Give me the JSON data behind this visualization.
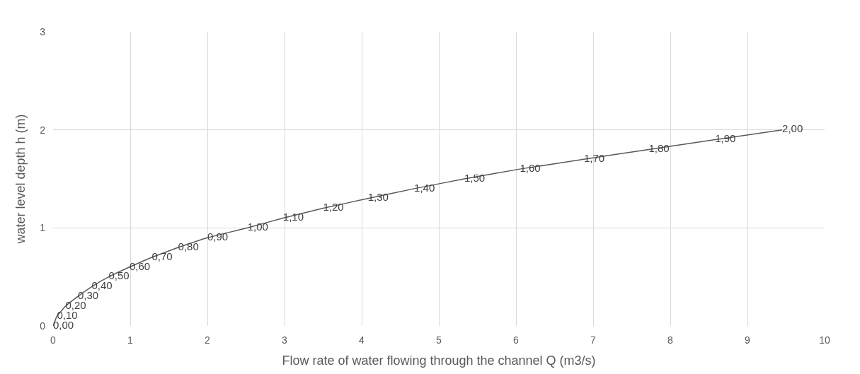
{
  "chart_data": {
    "type": "line",
    "xlabel": "Flow rate of water flowing through the channel Q (m3/s)",
    "ylabel": "water level depth h (m)",
    "series": [
      {
        "color": "#595959",
        "x": [
          0,
          0.05,
          0.16,
          0.32,
          0.5,
          0.72,
          0.99,
          1.28,
          1.62,
          2.0,
          2.52,
          2.98,
          3.5,
          4.08,
          4.68,
          5.33,
          6.05,
          6.88,
          7.72,
          8.58,
          9.45
        ],
        "values": [
          0,
          0.1,
          0.2,
          0.3,
          0.4,
          0.5,
          0.6,
          0.7,
          0.8,
          0.9,
          1.0,
          1.1,
          1.2,
          1.3,
          1.4,
          1.5,
          1.6,
          1.7,
          1.8,
          1.9,
          2.0
        ],
        "value_labels": [
          "0,00",
          "0,10",
          "0,20",
          "0,30",
          "0,40",
          "0,50",
          "0,60",
          "0,70",
          "0,80",
          "0,90",
          "1,00",
          "1,10",
          "1,20",
          "1,30",
          "1,40",
          "1,50",
          "1,60",
          "1,70",
          "1,80",
          "1,90",
          "2,00"
        ]
      }
    ],
    "xlim": [
      0,
      10
    ],
    "xticks": [
      0,
      1,
      2,
      3,
      4,
      5,
      6,
      7,
      8,
      9,
      10
    ],
    "ylim": [
      0,
      3
    ],
    "yticks": [
      0,
      1,
      2,
      3
    ],
    "grid": true,
    "marker": "none",
    "line_style": "solid"
  }
}
